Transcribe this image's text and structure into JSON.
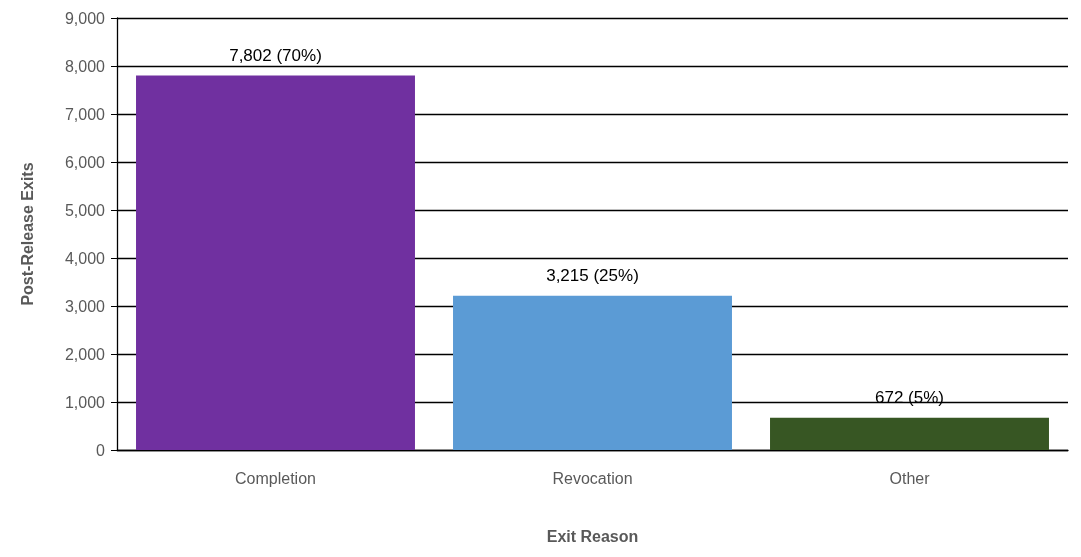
{
  "chart_data": {
    "type": "bar",
    "xlabel": "Exit Reason",
    "ylabel": "Post-Release Exits",
    "categories": [
      "Completion",
      "Revocation",
      "Other"
    ],
    "values": [
      7802,
      3215,
      672
    ],
    "colors": [
      "#7030a0",
      "#5b9bd5",
      "#375623"
    ],
    "value_labels": [
      "7,802 (70%)",
      "3,215 (25%)",
      "672 (5%)"
    ],
    "ylim": [
      0,
      9000
    ],
    "yticks": [
      0,
      {
        "value": 1000,
        "label": "1,000"
      },
      {
        "value": 2000,
        "label": "2,000"
      },
      {
        "value": 3000,
        "label": "3,000"
      },
      {
        "value": 4000,
        "label": "4,000"
      },
      {
        "value": 5000,
        "label": "5,000"
      },
      {
        "value": 6000,
        "label": "6,000"
      },
      {
        "value": 7000,
        "label": "7,000"
      },
      {
        "value": 8000,
        "label": "8,000"
      },
      {
        "value": 9000,
        "label": "9,000"
      }
    ],
    "grid": "y"
  }
}
